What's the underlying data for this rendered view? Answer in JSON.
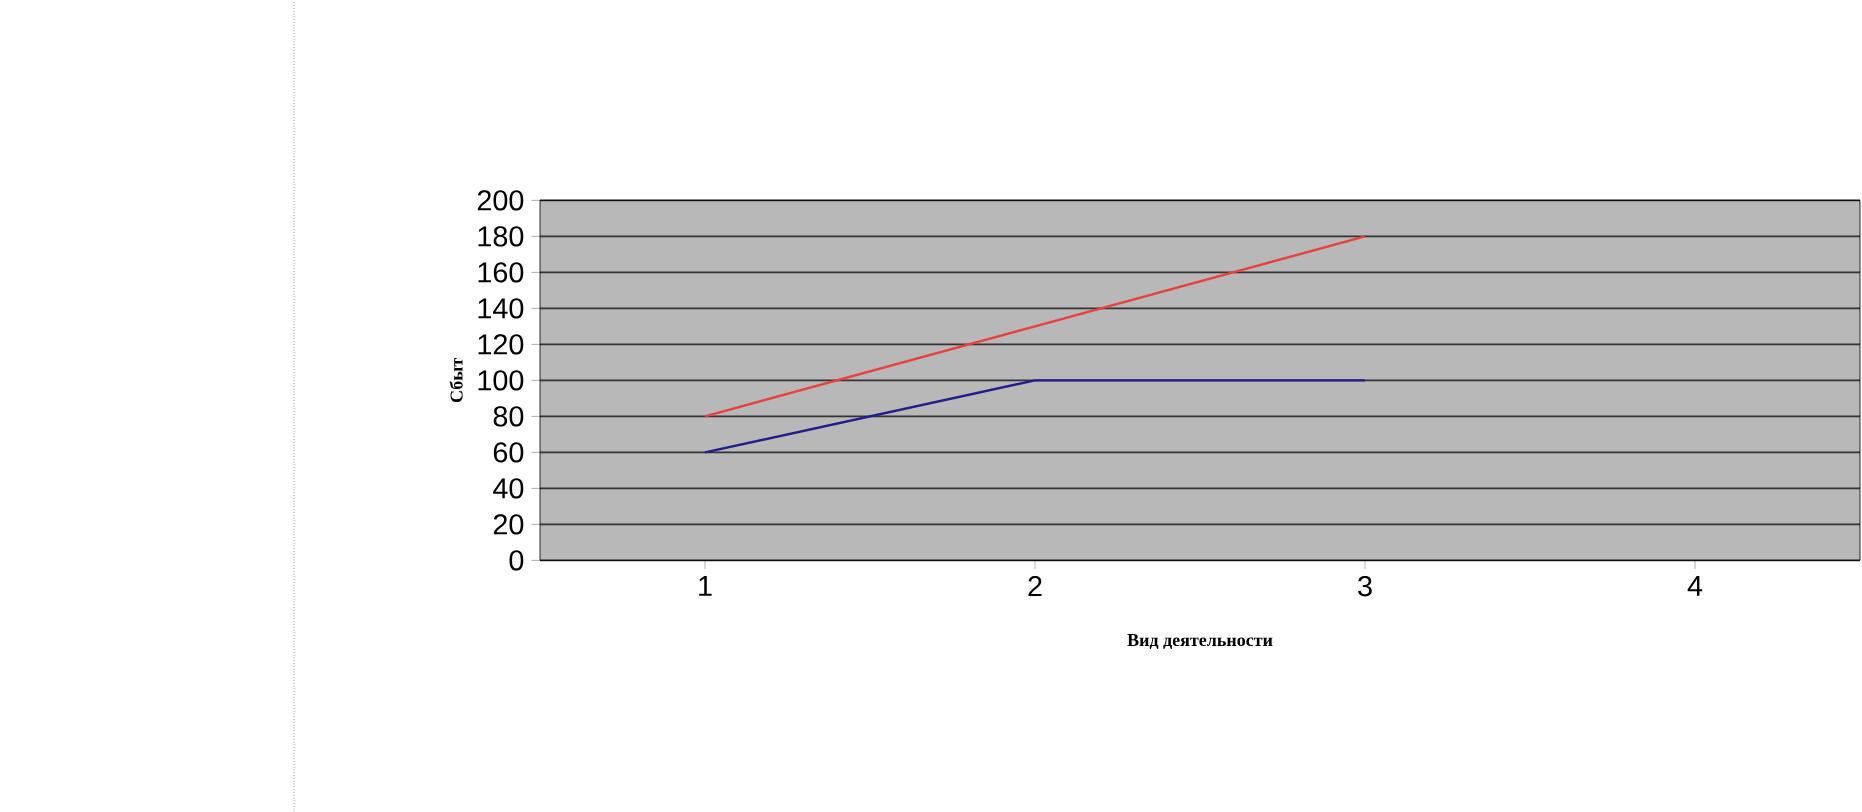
{
  "chart_data": {
    "type": "line",
    "xlabel": "Вид деятельности",
    "ylabel": "Сбыт",
    "categories": [
      "1",
      "2",
      "3",
      "4"
    ],
    "series": [
      {
        "color": "#e8413c",
        "values": [
          80,
          130,
          180,
          null
        ]
      },
      {
        "color": "#1f1f8a",
        "values": [
          60,
          100,
          100,
          null
        ]
      }
    ],
    "ylim": [
      0,
      200
    ],
    "yticks": [
      0,
      20,
      40,
      60,
      80,
      100,
      120,
      140,
      160,
      180,
      200
    ],
    "grid": "y",
    "marker": "none",
    "line_style": "solid"
  }
}
